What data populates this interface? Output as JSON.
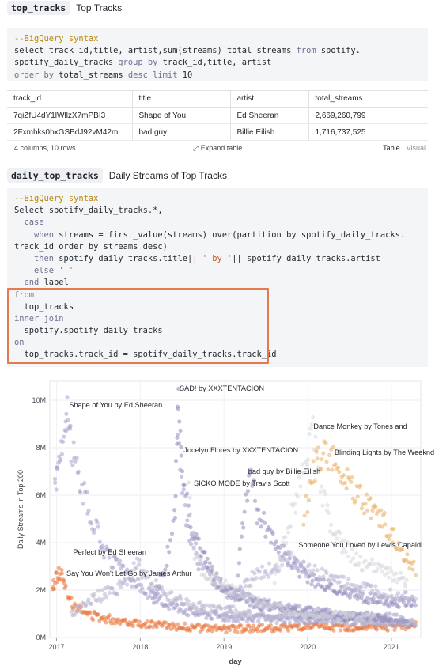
{
  "cell1": {
    "tag": "top_tracks",
    "title": "Top Tracks",
    "code": [
      [
        {
          "t": "--BigQuery syntax",
          "c": "cm"
        }
      ],
      [
        {
          "t": "select track_id,title, artist,sum(streams) total_streams ",
          "c": ""
        },
        {
          "t": "from",
          "c": "kw"
        },
        {
          "t": " spotify.",
          "c": ""
        }
      ],
      [
        {
          "t": "spotify_daily_tracks ",
          "c": ""
        },
        {
          "t": "group by",
          "c": "kw"
        },
        {
          "t": " track_id,title, artist",
          "c": ""
        }
      ],
      [
        {
          "t": "order by",
          "c": "kw"
        },
        {
          "t": " total_streams ",
          "c": ""
        },
        {
          "t": "desc limit",
          "c": "kw"
        },
        {
          "t": " 10",
          "c": ""
        }
      ]
    ]
  },
  "table": {
    "columns": [
      "track_id",
      "title",
      "artist",
      "total_streams"
    ],
    "rows": [
      [
        "7qiZfU4dY1lWllzX7mPBI3",
        "Shape of You",
        "Ed Sheeran",
        "2,669,260,799"
      ],
      [
        "2Fxmhks0bxGSBdJ92vM42m",
        "bad guy",
        "Billie Eilish",
        "1,716,737,525"
      ]
    ],
    "summary": "4 columns, 10 rows",
    "expand_label": "Expand table",
    "view_tabs": [
      "Table",
      "Visual"
    ]
  },
  "cell2": {
    "tag": "daily_top_tracks",
    "title": "Daily Streams of Top Tracks",
    "code": [
      [
        {
          "t": "--BigQuery syntax",
          "c": "cm"
        }
      ],
      [
        {
          "t": "Select spotify_daily_tracks.*,",
          "c": ""
        }
      ],
      [
        {
          "t": "  case",
          "c": "kw"
        }
      ],
      [
        {
          "t": "    when",
          "c": "kw"
        },
        {
          "t": " streams = first_value(streams) over(partition by spotify_daily_tracks.",
          "c": ""
        }
      ],
      [
        {
          "t": "track_id order by streams desc)",
          "c": ""
        }
      ],
      [
        {
          "t": "    then",
          "c": "kw"
        },
        {
          "t": " spotify_daily_tracks.title|| ",
          "c": ""
        },
        {
          "t": "' by '",
          "c": "str"
        },
        {
          "t": "|| spotify_daily_tracks.artist",
          "c": ""
        }
      ],
      [
        {
          "t": "    else",
          "c": "kw"
        },
        {
          "t": " ",
          "c": ""
        },
        {
          "t": "' '",
          "c": "str"
        }
      ],
      [
        {
          "t": "  end",
          "c": "kw"
        },
        {
          "t": " label",
          "c": ""
        }
      ],
      [
        {
          "t": "from",
          "c": "kw"
        }
      ],
      [
        {
          "t": "  top_tracks",
          "c": ""
        }
      ],
      [
        {
          "t": "inner join",
          "c": "kw"
        }
      ],
      [
        {
          "t": "  spotify.spotify_daily_tracks",
          "c": ""
        }
      ],
      [
        {
          "t": "on",
          "c": "kw"
        }
      ],
      [
        {
          "t": "  top_tracks.track_id = spotify_daily_tracks.track_id",
          "c": ""
        }
      ]
    ]
  },
  "chart_data": {
    "type": "scatter",
    "xlabel": "day",
    "ylabel": "Daily Streams in Top 200",
    "x_ticks": [
      "2017",
      "2018",
      "2019",
      "2020",
      "2021"
    ],
    "y_ticks": [
      "0M",
      "2M",
      "4M",
      "6M",
      "8M",
      "10M"
    ],
    "xlim": [
      2016.92,
      2021.35
    ],
    "ylim": [
      0,
      10.8
    ],
    "grid": true,
    "series": [
      {
        "color": "#e8743b",
        "peak_label": "Say You Won't Let Go by James Arthur",
        "points": [
          [
            2016.95,
            2.0
          ],
          [
            2017.0,
            2.6
          ],
          [
            2017.05,
            2.7
          ],
          [
            2017.1,
            2.2
          ],
          [
            2017.2,
            1.4
          ],
          [
            2017.35,
            1.0
          ],
          [
            2017.6,
            0.8
          ],
          [
            2018.0,
            0.6
          ],
          [
            2018.5,
            0.45
          ],
          [
            2019.0,
            0.35
          ],
          [
            2019.5,
            0.4
          ],
          [
            2020.0,
            0.45
          ],
          [
            2020.5,
            0.4
          ],
          [
            2021.0,
            0.45
          ],
          [
            2021.3,
            0.5
          ]
        ]
      },
      {
        "color": "#a6a1cc",
        "peak_label": "Shape of You by Ed Sheeran",
        "points": [
          [
            2016.98,
            6.5
          ],
          [
            2017.02,
            7.4
          ],
          [
            2017.08,
            8.0
          ],
          [
            2017.13,
            9.4
          ],
          [
            2017.18,
            8.1
          ],
          [
            2017.25,
            7.0
          ],
          [
            2017.4,
            5.2
          ],
          [
            2017.6,
            3.5
          ],
          [
            2017.9,
            2.4
          ],
          [
            2018.2,
            1.6
          ],
          [
            2018.6,
            1.1
          ],
          [
            2019.0,
            0.9
          ],
          [
            2019.5,
            0.8
          ],
          [
            2020.0,
            0.75
          ],
          [
            2020.6,
            0.7
          ],
          [
            2021.3,
            0.6
          ]
        ]
      },
      {
        "color": "#b8b5cf",
        "peak_label": "Perfect by Ed Sheeran",
        "points": [
          [
            2017.18,
            1.0
          ],
          [
            2017.4,
            1.6
          ],
          [
            2017.7,
            2.0
          ],
          [
            2017.9,
            2.7
          ],
          [
            2017.98,
            3.1
          ],
          [
            2018.1,
            2.4
          ],
          [
            2018.4,
            1.6
          ],
          [
            2018.8,
            1.2
          ],
          [
            2019.2,
            1.0
          ],
          [
            2019.7,
            0.9
          ],
          [
            2020.2,
            0.8
          ],
          [
            2020.8,
            0.7
          ],
          [
            2021.3,
            0.65
          ]
        ]
      },
      {
        "color": "#8e8ab8",
        "peak_label": "SAD! by XXXTENTACION",
        "points": [
          [
            2018.15,
            1.5
          ],
          [
            2018.3,
            3.0
          ],
          [
            2018.42,
            5.2
          ],
          [
            2018.45,
            10.5
          ],
          [
            2018.5,
            7.0
          ],
          [
            2018.6,
            4.8
          ],
          [
            2018.8,
            3.0
          ],
          [
            2019.0,
            2.0
          ],
          [
            2019.4,
            1.4
          ],
          [
            2019.8,
            1.1
          ],
          [
            2020.3,
            0.9
          ],
          [
            2021.0,
            0.8
          ]
        ]
      },
      {
        "color": "#9d98c6",
        "peak_label": "Jocelyn Flores by XXXTENTACION",
        "points": [
          [
            2018.45,
            8.0
          ],
          [
            2018.55,
            5.0
          ],
          [
            2018.7,
            3.2
          ],
          [
            2019.0,
            2.0
          ],
          [
            2019.5,
            1.4
          ],
          [
            2020.0,
            1.1
          ],
          [
            2020.6,
            0.9
          ],
          [
            2021.2,
            0.8
          ]
        ]
      },
      {
        "color": "#cfcfd8",
        "peak_label": "SICKO MODE by Travis Scott",
        "points": [
          [
            2018.58,
            6.0
          ],
          [
            2018.65,
            3.4
          ],
          [
            2018.8,
            2.6
          ],
          [
            2019.0,
            2.2
          ],
          [
            2019.3,
            1.6
          ],
          [
            2019.7,
            1.2
          ],
          [
            2020.2,
            1.0
          ],
          [
            2020.8,
            0.8
          ]
        ]
      },
      {
        "color": "#8f8bbd",
        "peak_label": "bad guy by Billie Eilish",
        "points": [
          [
            2019.15,
            2.0
          ],
          [
            2019.25,
            5.5
          ],
          [
            2019.32,
            7.0
          ],
          [
            2019.4,
            5.2
          ],
          [
            2019.6,
            4.1
          ],
          [
            2019.8,
            3.2
          ],
          [
            2020.0,
            2.5
          ],
          [
            2020.3,
            2.0
          ],
          [
            2020.7,
            1.7
          ],
          [
            2021.0,
            1.5
          ],
          [
            2021.3,
            1.4
          ]
        ]
      },
      {
        "color": "#d8d8de",
        "peak_label": "Dance Monkey by Tones and I",
        "points": [
          [
            2019.6,
            2.5
          ],
          [
            2019.8,
            5.0
          ],
          [
            2019.95,
            6.9
          ],
          [
            2020.05,
            9.0
          ],
          [
            2020.15,
            6.5
          ],
          [
            2020.3,
            4.4
          ],
          [
            2020.6,
            3.2
          ],
          [
            2020.9,
            2.8
          ],
          [
            2021.2,
            2.3
          ]
        ]
      },
      {
        "color": "#e9b064",
        "peak_label": "Blinding Lights by The Weeknd",
        "points": [
          [
            2019.95,
            5.0
          ],
          [
            2020.1,
            7.4
          ],
          [
            2020.2,
            7.9
          ],
          [
            2020.35,
            7.2
          ],
          [
            2020.5,
            6.4
          ],
          [
            2020.7,
            5.6
          ],
          [
            2020.9,
            4.9
          ],
          [
            2021.1,
            3.8
          ],
          [
            2021.3,
            2.8
          ]
        ]
      },
      {
        "color": "#b9b6d6",
        "peak_label": "Someone You Loved by Lewis Capaldi",
        "points": [
          [
            2019.0,
            1.0
          ],
          [
            2019.3,
            2.4
          ],
          [
            2019.6,
            3.0
          ],
          [
            2019.75,
            3.4
          ],
          [
            2019.9,
            3.0
          ],
          [
            2020.2,
            2.6
          ],
          [
            2020.5,
            2.2
          ],
          [
            2020.9,
            1.9
          ],
          [
            2021.3,
            1.7
          ]
        ]
      }
    ],
    "labels": [
      {
        "text": "SAD! by XXXTENTACION",
        "x": 2018.45,
        "y": 10.5
      },
      {
        "text": "Shape of You by Ed Sheeran",
        "x": 2017.13,
        "y": 9.8
      },
      {
        "text": "Dance Monkey by Tones and I",
        "x": 2020.05,
        "y": 8.9
      },
      {
        "text": "Jocelyn Flores by XXXTENTACION",
        "x": 2018.5,
        "y": 7.9
      },
      {
        "text": "Blinding Lights by The Weeknd",
        "x": 2020.3,
        "y": 7.8
      },
      {
        "text": "bad guy by Billie Eilish",
        "x": 2019.27,
        "y": 7.0
      },
      {
        "text": "SICKO MODE by Travis Scott",
        "x": 2018.62,
        "y": 6.5
      },
      {
        "text": "Someone You Loved by Lewis Capaldi",
        "x": 2019.87,
        "y": 3.9
      },
      {
        "text": "Perfect by Ed Sheeran",
        "x": 2017.18,
        "y": 3.6
      },
      {
        "text": "Say You Won't Let Go by James Arthur",
        "x": 2017.1,
        "y": 2.7
      }
    ]
  }
}
